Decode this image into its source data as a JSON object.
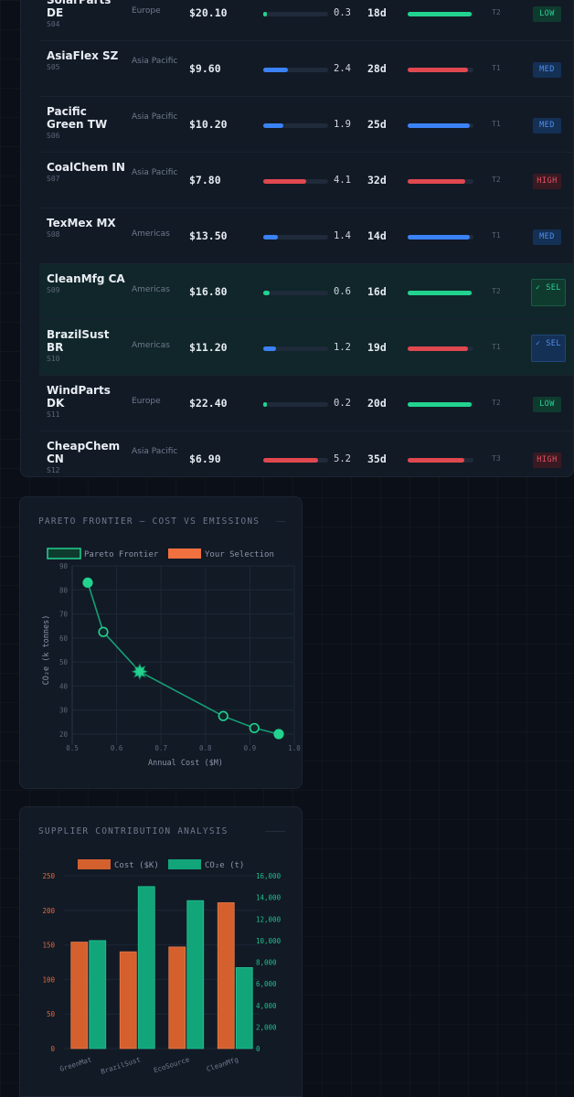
{
  "suppliers": [
    {
      "name": "SolarParts DE",
      "id": "S04",
      "region": "Europe",
      "price": "$20.10",
      "emissions": 0.3,
      "days": "18d",
      "status": "green",
      "status_level": 0.97,
      "tier": "T2",
      "badge": "LOW",
      "badge_kind": "low"
    },
    {
      "name": "AsiaFlex SZ",
      "id": "S05",
      "region": "Asia Pacific",
      "price": "$9.60",
      "emissions": 2.4,
      "days": "28d",
      "status": "red",
      "status_level": 0.92,
      "tier": "T1",
      "badge": "MED",
      "badge_kind": "med"
    },
    {
      "name": "Pacific Green TW",
      "id": "S06",
      "region": "Asia Pacific",
      "price": "$10.20",
      "emissions": 1.9,
      "days": "25d",
      "status": "blue",
      "status_level": 0.95,
      "tier": "T1",
      "badge": "MED",
      "badge_kind": "med"
    },
    {
      "name": "CoalChem IN",
      "id": "S07",
      "region": "Asia Pacific",
      "price": "$7.80",
      "emissions": 4.1,
      "days": "32d",
      "status": "red",
      "status_level": 0.88,
      "tier": "T2",
      "badge": "HIGH",
      "badge_kind": "high"
    },
    {
      "name": "TexMex MX",
      "id": "S08",
      "region": "Americas",
      "price": "$13.50",
      "emissions": 1.4,
      "days": "14d",
      "status": "blue",
      "status_level": 0.95,
      "tier": "T1",
      "badge": "MED",
      "badge_kind": "med"
    },
    {
      "name": "CleanMfg CA",
      "id": "S09",
      "region": "Americas",
      "price": "$16.80",
      "emissions": 0.6,
      "days": "16d",
      "status": "green",
      "status_level": 0.97,
      "tier": "T2",
      "badge": "✓ SEL",
      "badge_kind": "sel-green",
      "selected": true
    },
    {
      "name": "BrazilSust BR",
      "id": "S10",
      "region": "Americas",
      "price": "$11.20",
      "emissions": 1.2,
      "days": "19d",
      "status": "red",
      "status_level": 0.92,
      "tier": "T1",
      "badge": "✓ SEL",
      "badge_kind": "sel-blue",
      "selected": true
    },
    {
      "name": "WindParts DK",
      "id": "S11",
      "region": "Europe",
      "price": "$22.40",
      "emissions": 0.2,
      "days": "20d",
      "status": "green",
      "status_level": 0.97,
      "tier": "T2",
      "badge": "LOW",
      "badge_kind": "low"
    },
    {
      "name": "CheapChem CN",
      "id": "S12",
      "region": "Asia Pacific",
      "price": "$6.90",
      "emissions": 5.2,
      "days": "35d",
      "status": "red",
      "status_level": 0.86,
      "tier": "T3",
      "badge": "HIGH",
      "badge_kind": "high"
    }
  ],
  "colors": {
    "green": "#22d38f",
    "blue": "#3b82f6",
    "red": "#e0484f",
    "orange": "#d4602e",
    "teal": "#12a57a"
  },
  "pareto_panel": {
    "title": "PARETO FRONTIER — COST VS EMISSIONS"
  },
  "contribution_panel": {
    "title": "SUPPLIER CONTRIBUTION ANALYSIS"
  },
  "chart_data": [
    {
      "type": "line",
      "title": "",
      "xlabel": "Annual Cost ($M)",
      "ylabel": "CO₂e (k tonnes)",
      "xlim": [
        0.5,
        1.0
      ],
      "ylim": [
        15,
        90
      ],
      "xticks": [
        "0.5",
        "0.6",
        "0.7",
        "0.8",
        "0.9",
        "1.0"
      ],
      "yticks": [
        "20",
        "30",
        "40",
        "50",
        "60",
        "70",
        "80",
        "90"
      ],
      "legend": [
        "Pareto Frontier",
        "Your Selection"
      ],
      "series": [
        {
          "name": "Pareto Frontier",
          "points": [
            [
              0.535,
              83
            ],
            [
              0.57,
              62.5
            ],
            [
              0.652,
              46
            ],
            [
              0.84,
              27.5
            ],
            [
              0.91,
              22.5
            ],
            [
              0.965,
              20
            ]
          ]
        },
        {
          "name": "Your Selection",
          "points": [
            [
              0.652,
              46
            ]
          ]
        }
      ]
    },
    {
      "type": "bar",
      "title": "",
      "categories": [
        "GreenMat",
        "BrazilSust",
        "EcoSource",
        "CleanMfg"
      ],
      "legend": [
        "Cost ($K)",
        "CO₂e (t)"
      ],
      "y_left": {
        "ticks": [
          "0",
          "50",
          "100",
          "150",
          "200",
          "250"
        ],
        "lim": [
          0,
          250
        ]
      },
      "y_right": {
        "ticks": [
          "0",
          "2,000",
          "4,000",
          "6,000",
          "8,000",
          "10,000",
          "12,000",
          "14,000",
          "16,000"
        ],
        "lim": [
          0,
          16000
        ]
      },
      "series": [
        {
          "name": "Cost ($K)",
          "axis": "left",
          "values": [
            154,
            140,
            147,
            211
          ]
        },
        {
          "name": "CO₂e (t)",
          "axis": "right",
          "values": [
            10000,
            15000,
            13700,
            7500
          ]
        }
      ]
    }
  ]
}
